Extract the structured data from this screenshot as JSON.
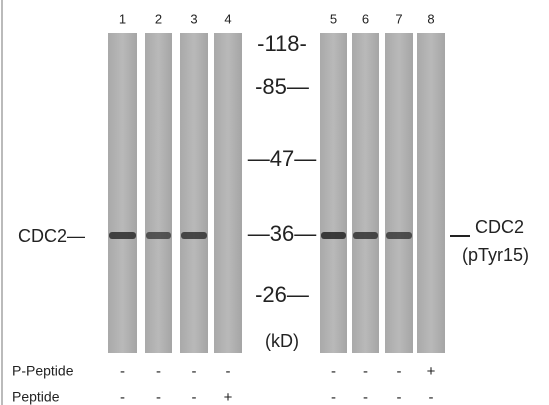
{
  "lanes": [
    "1",
    "2",
    "3",
    "4",
    "5",
    "6",
    "7",
    "8"
  ],
  "markers": [
    "-118-",
    "-85—",
    "—47—",
    "—36—",
    "-26—"
  ],
  "unit": "(kD)",
  "left_label": "CDC2—",
  "right_label": [
    "CDC2",
    "(pTyr15)"
  ],
  "rows": [
    {
      "name": "P-Peptide",
      "signs": [
        "-",
        "-",
        "-",
        "-",
        "-",
        "-",
        "-",
        "+"
      ]
    },
    {
      "name": "Peptide",
      "signs": [
        "-",
        "-",
        "-",
        "+",
        "-",
        "-",
        "-",
        "-"
      ]
    }
  ]
}
